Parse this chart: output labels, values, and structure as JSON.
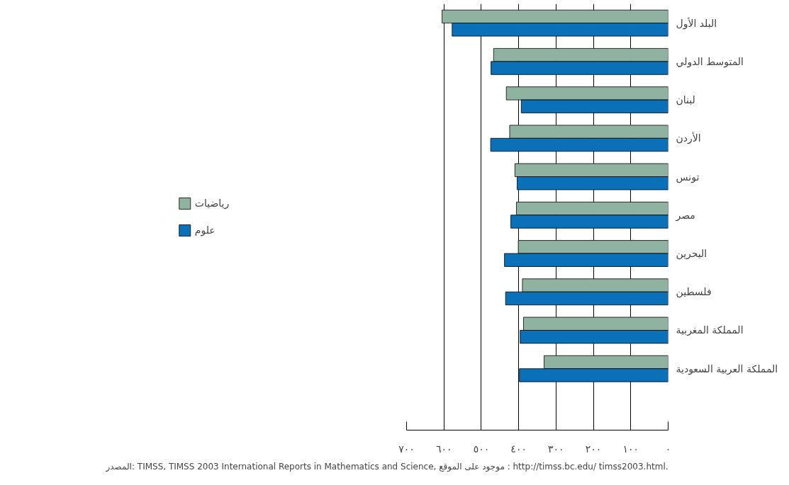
{
  "chart_data": {
    "type": "bar",
    "orientation": "horizontal",
    "categories": [
      "البلد الأول",
      "المتوسط الدولي",
      "لبنان",
      "الأردن",
      "تونس",
      "مصر",
      "البحرين",
      "فلسطين",
      "المملكة المغربية",
      "المملكة العربية السعودية"
    ],
    "series": [
      {
        "name": "رياضيات",
        "color": "#8fb3a0",
        "values": [
          605,
          467,
          433,
          424,
          410,
          406,
          401,
          390,
          387,
          332
        ]
      },
      {
        "name": "علوم",
        "color": "#0a70b8",
        "values": [
          578,
          474,
          393,
          475,
          404,
          421,
          438,
          435,
          396,
          398
        ]
      }
    ],
    "xlim": [
      700,
      0
    ],
    "xticks": [
      {
        "value": 700,
        "label": "٧٠٠"
      },
      {
        "value": 600,
        "label": "٦٠٠"
      },
      {
        "value": 500,
        "label": "٥٠٠"
      },
      {
        "value": 400,
        "label": "٤٠٠"
      },
      {
        "value": 300,
        "label": "٣٠٠"
      },
      {
        "value": 200,
        "label": "٢٠٠"
      },
      {
        "value": 100,
        "label": "١٠٠"
      },
      {
        "value": 0,
        "label": "٠"
      }
    ],
    "grid": "x",
    "legend": "left",
    "annotations": [
      "المصدر: TIMSS, TIMSS 2003 International Reports in Mathematics and Science, موجود على الموقع : http://timss.bc.edu/ timss2003.html."
    ]
  }
}
